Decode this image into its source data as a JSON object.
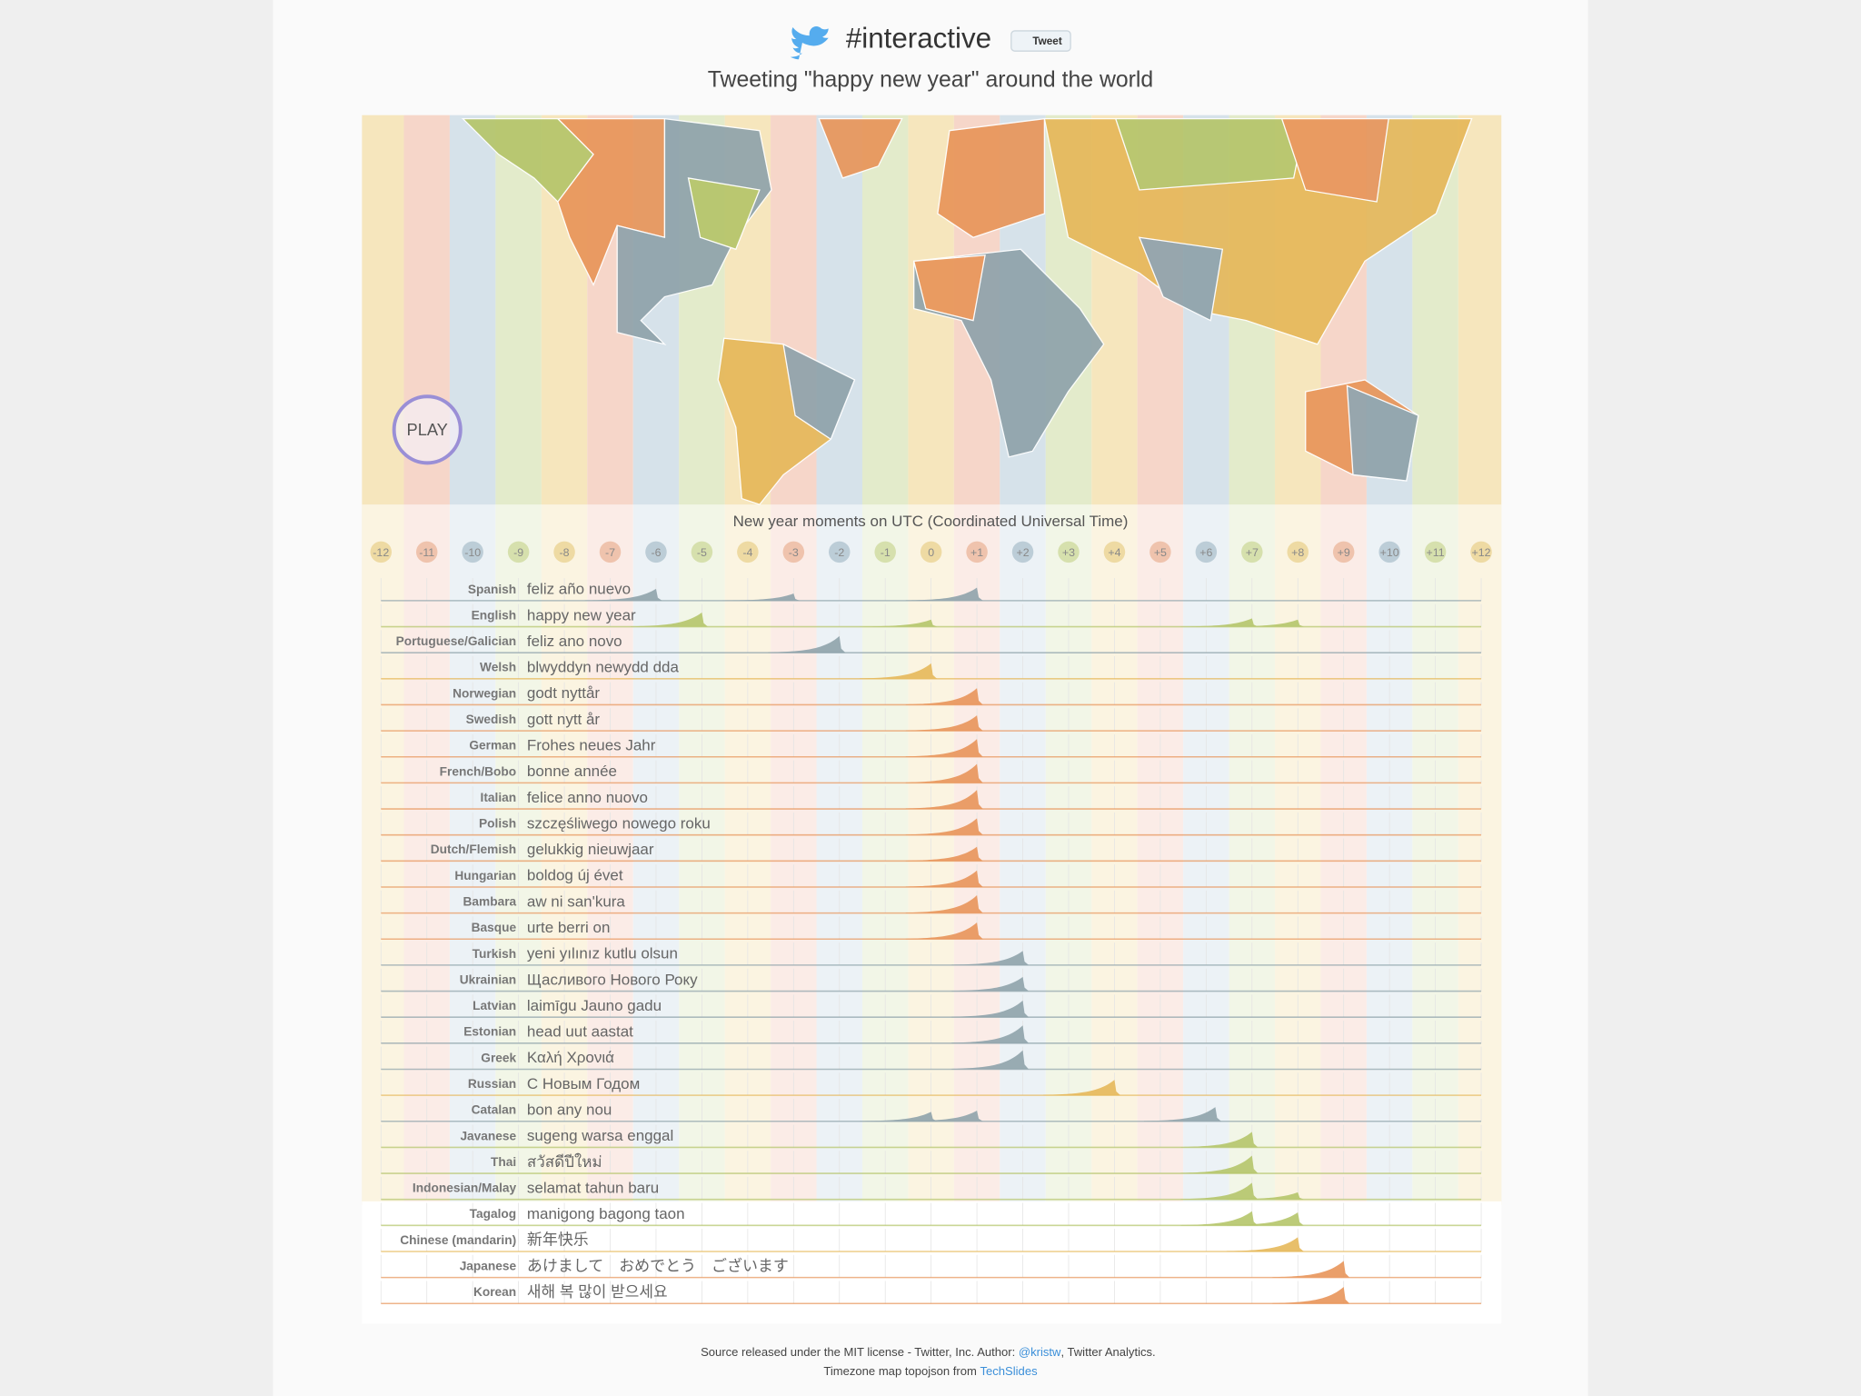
{
  "header": {
    "title": "#interactive",
    "tweet_button": "Tweet",
    "subtitle": "Tweeting \"happy new year\" around the world"
  },
  "play_button": "PLAY",
  "timeline": {
    "title": "New year moments on UTC (Coordinated Universal Time)",
    "timezones": [
      "-12",
      "-11",
      "-10",
      "-9",
      "-8",
      "-7",
      "-6",
      "-5",
      "-4",
      "-3",
      "-2",
      "-1",
      "0",
      "+1",
      "+2",
      "+3",
      "+4",
      "+5",
      "+6",
      "+7",
      "+8",
      "+9",
      "+10",
      "+11",
      "+12"
    ],
    "rows": [
      {
        "language": "Spanish",
        "phrase": "feliz año nuevo",
        "color": "#8fa3ab",
        "peaks": [
          [
            -6,
            0.5
          ],
          [
            -3,
            0.3
          ],
          [
            1,
            0.55
          ]
        ]
      },
      {
        "language": "English",
        "phrase": "happy new year",
        "color": "#b5c56a",
        "peaks": [
          [
            -5,
            0.6
          ],
          [
            0,
            0.3
          ],
          [
            7,
            0.35
          ],
          [
            8,
            0.3
          ]
        ]
      },
      {
        "language": "Portuguese/Galician",
        "phrase": "feliz ano novo",
        "color": "#8fa3ab",
        "peaks": [
          [
            -2,
            0.7
          ]
        ]
      },
      {
        "language": "Welsh",
        "phrase": "blwyddyn newydd dda",
        "color": "#e6b85a",
        "peaks": [
          [
            0,
            0.65
          ]
        ]
      },
      {
        "language": "Norwegian",
        "phrase": "godt nyttår",
        "color": "#e8955a",
        "peaks": [
          [
            1,
            0.7
          ]
        ]
      },
      {
        "language": "Swedish",
        "phrase": "gott nytt år",
        "color": "#e8955a",
        "peaks": [
          [
            1,
            0.65
          ]
        ]
      },
      {
        "language": "German",
        "phrase": "Frohes neues Jahr",
        "color": "#e8955a",
        "peaks": [
          [
            1,
            0.75
          ]
        ]
      },
      {
        "language": "French/Bobo",
        "phrase": "bonne année",
        "color": "#e8955a",
        "peaks": [
          [
            1,
            0.8
          ]
        ]
      },
      {
        "language": "Italian",
        "phrase": "felice anno nuovo",
        "color": "#e8955a",
        "peaks": [
          [
            1,
            0.8
          ]
        ]
      },
      {
        "language": "Polish",
        "phrase": "szczęśliwego nowego roku",
        "color": "#e8955a",
        "peaks": [
          [
            1,
            0.7
          ]
        ]
      },
      {
        "language": "Dutch/Flemish",
        "phrase": "gelukkig nieuwjaar",
        "color": "#e8955a",
        "peaks": [
          [
            1,
            0.6
          ]
        ]
      },
      {
        "language": "Hungarian",
        "phrase": "boldog új évet",
        "color": "#e8955a",
        "peaks": [
          [
            1,
            0.7
          ]
        ]
      },
      {
        "language": "Bambara",
        "phrase": "aw ni san'kura",
        "color": "#e8955a",
        "peaks": [
          [
            1,
            0.75
          ]
        ]
      },
      {
        "language": "Basque",
        "phrase": "urte berri on",
        "color": "#e8955a",
        "peaks": [
          [
            1,
            0.7
          ]
        ]
      },
      {
        "language": "Turkish",
        "phrase": "yeni yılınız kutlu olsun",
        "color": "#8fa3ab",
        "peaks": [
          [
            2,
            0.6
          ]
        ]
      },
      {
        "language": "Ukrainian",
        "phrase": "Щасливого Нового Року",
        "color": "#8fa3ab",
        "peaks": [
          [
            2,
            0.6
          ]
        ]
      },
      {
        "language": "Latvian",
        "phrase": "laimīgu Jauno gadu",
        "color": "#8fa3ab",
        "peaks": [
          [
            2,
            0.7
          ]
        ]
      },
      {
        "language": "Estonian",
        "phrase": "head uut aastat",
        "color": "#8fa3ab",
        "peaks": [
          [
            2,
            0.75
          ]
        ]
      },
      {
        "language": "Greek",
        "phrase": "Καλή Χρονιά",
        "color": "#8fa3ab",
        "peaks": [
          [
            2,
            0.8
          ]
        ]
      },
      {
        "language": "Russian",
        "phrase": "С Новым Годом",
        "color": "#e6b85a",
        "peaks": [
          [
            4,
            0.65
          ]
        ]
      },
      {
        "language": "Catalan",
        "phrase": "bon any nou",
        "color": "#8fa3ab",
        "peaks": [
          [
            0,
            0.4
          ],
          [
            1,
            0.45
          ],
          [
            6.2,
            0.6
          ]
        ]
      },
      {
        "language": "Javanese",
        "phrase": "sugeng warsa enggal",
        "color": "#b5c56a",
        "peaks": [
          [
            7,
            0.65
          ]
        ]
      },
      {
        "language": "Thai",
        "phrase": "สวัสดีปีใหม่",
        "color": "#b5c56a",
        "peaks": [
          [
            7,
            0.75
          ]
        ]
      },
      {
        "language": "Indonesian/Malay",
        "phrase": "selamat tahun baru",
        "color": "#b5c56a",
        "peaks": [
          [
            7,
            0.7
          ],
          [
            8,
            0.3
          ]
        ]
      },
      {
        "language": "Tagalog",
        "phrase": "manigong bagong taon",
        "color": "#b5c56a",
        "peaks": [
          [
            7,
            0.6
          ],
          [
            8,
            0.55
          ]
        ]
      },
      {
        "language": "Chinese (mandarin)",
        "phrase": "新年快乐",
        "color": "#e6b85a",
        "peaks": [
          [
            8,
            0.6
          ]
        ]
      },
      {
        "language": "Japanese",
        "phrase": "あけまして　おめでとう　ございます",
        "color": "#e8955a",
        "peaks": [
          [
            9,
            0.7
          ]
        ]
      },
      {
        "language": "Korean",
        "phrase": "새해 복 많이 받으세요",
        "color": "#e8955a",
        "peaks": [
          [
            9,
            0.7
          ]
        ]
      }
    ]
  },
  "footer": {
    "line1": [
      "Source released under the MIT license - Twitter, Inc. Author: ",
      "@kristw",
      ", Twitter Analytics."
    ],
    "line2": [
      "Timezone map topojson from ",
      "TechSlides"
    ]
  }
}
